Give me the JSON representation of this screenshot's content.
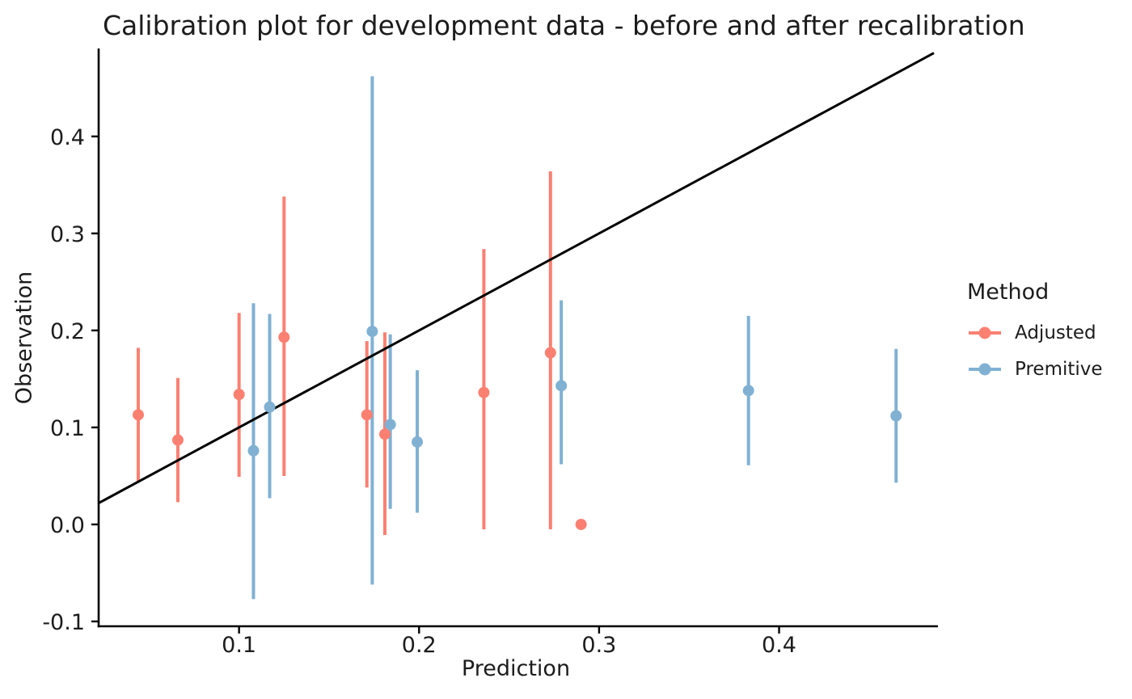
{
  "chart_data": {
    "type": "scatter",
    "title": "Calibration plot for development data - before and after recalibration",
    "xlabel": "Prediction",
    "ylabel": "Observation",
    "xlim": [
      0.022,
      0.486
    ],
    "ylim": [
      -0.105,
      0.489
    ],
    "x_ticks": [
      0.1,
      0.2,
      0.3,
      0.4
    ],
    "x_tick_labels": [
      "0.1",
      "0.2",
      "0.3",
      "0.4"
    ],
    "y_ticks": [
      -0.1,
      0.0,
      0.1,
      0.2,
      0.3,
      0.4
    ],
    "y_tick_labels": [
      "-0.1",
      "0.0",
      "0.1",
      "0.2",
      "0.3",
      "0.4"
    ],
    "grid": false,
    "background": "#ffffff",
    "axis_color": "#000000",
    "reference_line": {
      "slope": 1,
      "intercept": 0,
      "color": "#000000"
    },
    "legend": {
      "title": "Method",
      "position": "right",
      "entries": [
        {
          "label": "Adjusted",
          "color": "#FB8072"
        },
        {
          "label": "Premitive",
          "color": "#80B1D3"
        }
      ]
    },
    "series": [
      {
        "name": "Adjusted",
        "color": "#FB8072",
        "points": [
          {
            "x": 0.044,
            "y": 0.113,
            "ymin": 0.043,
            "ymax": 0.182
          },
          {
            "x": 0.066,
            "y": 0.087,
            "ymin": 0.023,
            "ymax": 0.151
          },
          {
            "x": 0.1,
            "y": 0.134,
            "ymin": 0.049,
            "ymax": 0.218
          },
          {
            "x": 0.125,
            "y": 0.193,
            "ymin": 0.05,
            "ymax": 0.338
          },
          {
            "x": 0.171,
            "y": 0.113,
            "ymin": 0.038,
            "ymax": 0.189
          },
          {
            "x": 0.181,
            "y": 0.093,
            "ymin": -0.011,
            "ymax": 0.198
          },
          {
            "x": 0.236,
            "y": 0.136,
            "ymin": -0.005,
            "ymax": 0.284
          },
          {
            "x": 0.273,
            "y": 0.177,
            "ymin": -0.005,
            "ymax": 0.364
          },
          {
            "x": 0.29,
            "y": 0.0,
            "ymin": 0.0,
            "ymax": 0.0
          }
        ]
      },
      {
        "name": "Premitive",
        "color": "#80B1D3",
        "points": [
          {
            "x": 0.108,
            "y": 0.076,
            "ymin": -0.077,
            "ymax": 0.228
          },
          {
            "x": 0.117,
            "y": 0.121,
            "ymin": 0.027,
            "ymax": 0.217
          },
          {
            "x": 0.174,
            "y": 0.199,
            "ymin": -0.062,
            "ymax": 0.462
          },
          {
            "x": 0.184,
            "y": 0.103,
            "ymin": 0.016,
            "ymax": 0.196
          },
          {
            "x": 0.199,
            "y": 0.085,
            "ymin": 0.012,
            "ymax": 0.159
          },
          {
            "x": 0.279,
            "y": 0.143,
            "ymin": 0.062,
            "ymax": 0.231
          },
          {
            "x": 0.383,
            "y": 0.138,
            "ymin": 0.061,
            "ymax": 0.215
          },
          {
            "x": 0.465,
            "y": 0.112,
            "ymin": 0.043,
            "ymax": 0.181
          }
        ]
      }
    ]
  }
}
